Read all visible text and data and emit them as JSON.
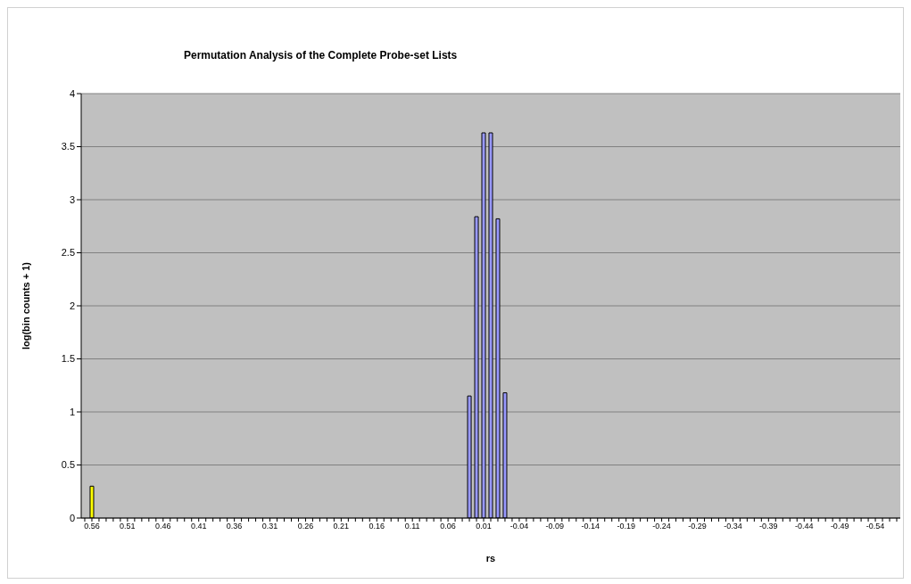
{
  "chart_data": {
    "type": "bar",
    "title": "Permutation Analysis of the Complete Probe-set Lists",
    "xlabel": "rs",
    "ylabel": "log(bin counts + 1)",
    "categories": [
      null,
      "0.56",
      null,
      null,
      null,
      null,
      "0.51",
      null,
      null,
      null,
      null,
      "0.46",
      null,
      null,
      null,
      null,
      "0.41",
      null,
      null,
      null,
      null,
      "0.36",
      null,
      null,
      null,
      null,
      "0.31",
      null,
      null,
      null,
      null,
      "0.26",
      null,
      null,
      null,
      null,
      "0.21",
      null,
      null,
      null,
      null,
      "0.16",
      null,
      null,
      null,
      null,
      "0.11",
      null,
      null,
      null,
      null,
      "0.06",
      null,
      null,
      null,
      null,
      "0.01",
      null,
      null,
      null,
      null,
      "-0.04",
      null,
      null,
      null,
      null,
      "-0.09",
      null,
      null,
      null,
      null,
      "-0.14",
      null,
      null,
      null,
      null,
      "-0.19",
      null,
      null,
      null,
      null,
      "-0.24",
      null,
      null,
      null,
      null,
      "-0.29",
      null,
      null,
      null,
      null,
      "-0.34",
      null,
      null,
      null,
      null,
      "-0.39",
      null,
      null,
      null,
      null,
      "-0.44",
      null,
      null,
      null,
      null,
      "-0.49",
      null,
      null,
      null,
      null,
      "-0.54",
      null,
      null,
      null
    ],
    "values": [
      0,
      0.3,
      0,
      0,
      0,
      0,
      0,
      0,
      0,
      0,
      0,
      0,
      0,
      0,
      0,
      0,
      0,
      0,
      0,
      0,
      0,
      0,
      0,
      0,
      0,
      0,
      0,
      0,
      0,
      0,
      0,
      0,
      0,
      0,
      0,
      0,
      0,
      0,
      0,
      0,
      0,
      0,
      0,
      0,
      0,
      0,
      0,
      0,
      0,
      0,
      0,
      0,
      0,
      0,
      1.15,
      2.84,
      3.63,
      3.63,
      2.82,
      1.18,
      0,
      0,
      0,
      0,
      0,
      0,
      0,
      0,
      0,
      0,
      0,
      0,
      0,
      0,
      0,
      0,
      0,
      0,
      0,
      0,
      0,
      0,
      0,
      0,
      0,
      0,
      0,
      0,
      0,
      0,
      0,
      0,
      0,
      0,
      0,
      0,
      0,
      0,
      0,
      0,
      0,
      0,
      0,
      0,
      0,
      0,
      0,
      0,
      0,
      0,
      0,
      0,
      0,
      0,
      0
    ],
    "colors": [
      "#9999ff",
      "#ffff00",
      "#9999ff",
      "#9999ff",
      "#9999ff",
      "#9999ff",
      "#9999ff",
      "#9999ff",
      "#9999ff",
      "#9999ff",
      "#9999ff",
      "#9999ff",
      "#9999ff",
      "#9999ff",
      "#9999ff",
      "#9999ff",
      "#9999ff",
      "#9999ff",
      "#9999ff",
      "#9999ff",
      "#9999ff",
      "#9999ff",
      "#9999ff",
      "#9999ff",
      "#9999ff",
      "#9999ff",
      "#9999ff",
      "#9999ff",
      "#9999ff",
      "#9999ff",
      "#9999ff",
      "#9999ff",
      "#9999ff",
      "#9999ff",
      "#9999ff",
      "#9999ff",
      "#9999ff",
      "#9999ff",
      "#9999ff",
      "#9999ff",
      "#9999ff",
      "#9999ff",
      "#9999ff",
      "#9999ff",
      "#9999ff",
      "#9999ff",
      "#9999ff",
      "#9999ff",
      "#9999ff",
      "#9999ff",
      "#9999ff",
      "#9999ff",
      "#9999ff",
      "#9999ff",
      "#9999ff",
      "#9999ff",
      "#9999ff",
      "#9999ff",
      "#9999ff",
      "#9999ff",
      "#9999ff",
      "#9999ff",
      "#9999ff",
      "#9999ff",
      "#9999ff",
      "#9999ff",
      "#9999ff",
      "#9999ff",
      "#9999ff",
      "#9999ff",
      "#9999ff",
      "#9999ff",
      "#9999ff",
      "#9999ff",
      "#9999ff",
      "#9999ff",
      "#9999ff",
      "#9999ff",
      "#9999ff",
      "#9999ff",
      "#9999ff",
      "#9999ff",
      "#9999ff",
      "#9999ff",
      "#9999ff",
      "#9999ff",
      "#9999ff",
      "#9999ff",
      "#9999ff",
      "#9999ff",
      "#9999ff",
      "#9999ff",
      "#9999ff",
      "#9999ff",
      "#9999ff",
      "#9999ff",
      "#9999ff",
      "#9999ff",
      "#9999ff",
      "#9999ff",
      "#9999ff",
      "#9999ff",
      "#9999ff",
      "#9999ff",
      "#9999ff",
      "#9999ff",
      "#9999ff",
      "#9999ff",
      "#9999ff",
      "#9999ff",
      "#9999ff",
      "#9999ff",
      "#9999ff",
      "#9999ff",
      "#9999ff"
    ],
    "ylim": [
      0,
      4
    ],
    "yticks": [
      0,
      0.5,
      1,
      1.5,
      2,
      2.5,
      3,
      3.5,
      4
    ],
    "grid": "y"
  }
}
